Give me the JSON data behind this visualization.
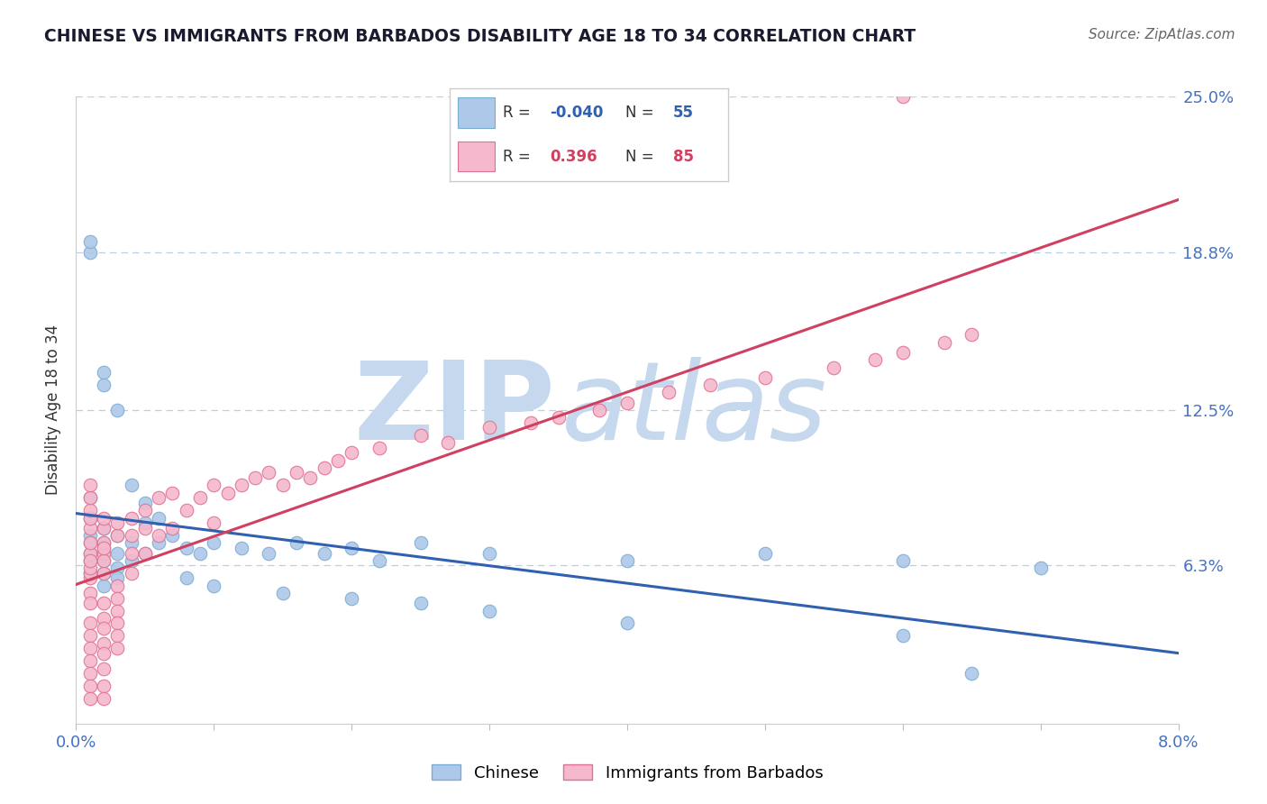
{
  "title": "CHINESE VS IMMIGRANTS FROM BARBADOS DISABILITY AGE 18 TO 34 CORRELATION CHART",
  "source": "Source: ZipAtlas.com",
  "ylabel": "Disability Age 18 to 34",
  "xlim": [
    0.0,
    0.08
  ],
  "ylim": [
    0.0,
    0.25
  ],
  "ytick_values": [
    0.063,
    0.125,
    0.188,
    0.25
  ],
  "ytick_labels": [
    "6.3%",
    "12.5%",
    "18.8%",
    "25.0%"
  ],
  "chinese": {
    "name": "Chinese",
    "color": "#adc8e8",
    "edge_color": "#7aadd4",
    "line_color": "#3060b0",
    "R": -0.04,
    "N": 55,
    "x": [
      0.001,
      0.001,
      0.001,
      0.001,
      0.001,
      0.001,
      0.001,
      0.002,
      0.002,
      0.002,
      0.002,
      0.002,
      0.002,
      0.003,
      0.003,
      0.003,
      0.003,
      0.004,
      0.004,
      0.005,
      0.005,
      0.006,
      0.007,
      0.008,
      0.009,
      0.01,
      0.012,
      0.014,
      0.016,
      0.018,
      0.02,
      0.022,
      0.025,
      0.03,
      0.04,
      0.05,
      0.06,
      0.07,
      0.001,
      0.001,
      0.002,
      0.002,
      0.003,
      0.004,
      0.005,
      0.006,
      0.008,
      0.01,
      0.015,
      0.02,
      0.025,
      0.03,
      0.04,
      0.06,
      0.065
    ],
    "y": [
      0.075,
      0.082,
      0.068,
      0.09,
      0.072,
      0.065,
      0.06,
      0.078,
      0.07,
      0.065,
      0.06,
      0.072,
      0.055,
      0.068,
      0.075,
      0.062,
      0.058,
      0.072,
      0.065,
      0.08,
      0.068,
      0.072,
      0.075,
      0.07,
      0.068,
      0.072,
      0.07,
      0.068,
      0.072,
      0.068,
      0.07,
      0.065,
      0.072,
      0.068,
      0.065,
      0.068,
      0.065,
      0.062,
      0.188,
      0.192,
      0.14,
      0.135,
      0.125,
      0.095,
      0.088,
      0.082,
      0.058,
      0.055,
      0.052,
      0.05,
      0.048,
      0.045,
      0.04,
      0.035,
      0.02
    ]
  },
  "barbados": {
    "name": "Immigrants from Barbados",
    "color": "#f5b8cc",
    "edge_color": "#e07090",
    "line_color": "#d04060",
    "R": 0.396,
    "N": 85,
    "x": [
      0.001,
      0.001,
      0.001,
      0.001,
      0.001,
      0.001,
      0.001,
      0.001,
      0.001,
      0.001,
      0.001,
      0.001,
      0.001,
      0.001,
      0.001,
      0.001,
      0.001,
      0.001,
      0.001,
      0.001,
      0.002,
      0.002,
      0.002,
      0.002,
      0.002,
      0.002,
      0.002,
      0.002,
      0.002,
      0.002,
      0.002,
      0.002,
      0.002,
      0.002,
      0.002,
      0.003,
      0.003,
      0.003,
      0.003,
      0.003,
      0.003,
      0.003,
      0.003,
      0.004,
      0.004,
      0.004,
      0.004,
      0.005,
      0.005,
      0.005,
      0.006,
      0.006,
      0.007,
      0.007,
      0.008,
      0.009,
      0.01,
      0.01,
      0.011,
      0.012,
      0.013,
      0.014,
      0.015,
      0.016,
      0.017,
      0.018,
      0.019,
      0.02,
      0.022,
      0.025,
      0.027,
      0.03,
      0.033,
      0.035,
      0.038,
      0.04,
      0.043,
      0.046,
      0.05,
      0.055,
      0.058,
      0.06,
      0.063,
      0.065,
      0.06
    ],
    "y": [
      0.068,
      0.072,
      0.078,
      0.058,
      0.052,
      0.048,
      0.04,
      0.035,
      0.03,
      0.025,
      0.02,
      0.015,
      0.01,
      0.06,
      0.062,
      0.065,
      0.082,
      0.085,
      0.09,
      0.095,
      0.068,
      0.072,
      0.078,
      0.082,
      0.048,
      0.042,
      0.038,
      0.032,
      0.028,
      0.022,
      0.015,
      0.01,
      0.06,
      0.065,
      0.07,
      0.075,
      0.08,
      0.055,
      0.05,
      0.045,
      0.04,
      0.035,
      0.03,
      0.082,
      0.075,
      0.068,
      0.06,
      0.085,
      0.078,
      0.068,
      0.09,
      0.075,
      0.092,
      0.078,
      0.085,
      0.09,
      0.095,
      0.08,
      0.092,
      0.095,
      0.098,
      0.1,
      0.095,
      0.1,
      0.098,
      0.102,
      0.105,
      0.108,
      0.11,
      0.115,
      0.112,
      0.118,
      0.12,
      0.122,
      0.125,
      0.128,
      0.132,
      0.135,
      0.138,
      0.142,
      0.145,
      0.148,
      0.152,
      0.155,
      0.25
    ]
  },
  "watermark_zip": "ZIP",
  "watermark_atlas": "atlas",
  "watermark_color_zip": "#c5d8ee",
  "watermark_color_atlas": "#c5d8ee",
  "background_color": "#ffffff",
  "grid_color": "#b8d0e8",
  "title_color": "#1a1a2e",
  "source_color": "#666666"
}
